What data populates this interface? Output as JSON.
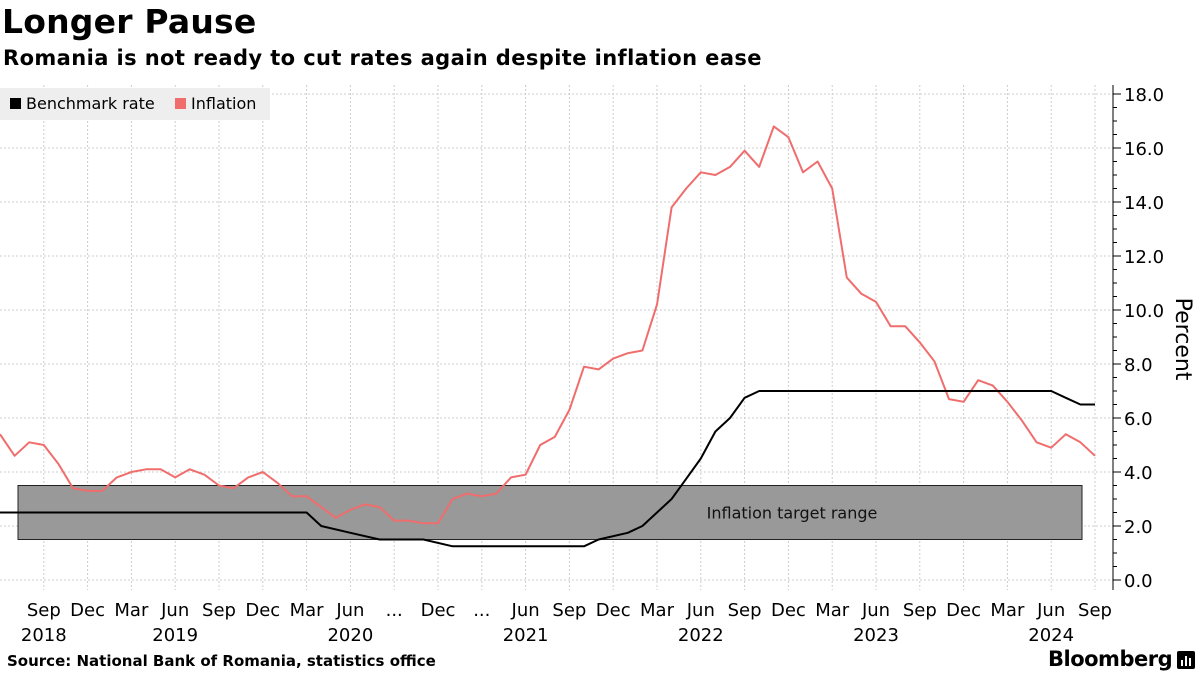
{
  "title": "Longer Pause",
  "subtitle": "Romania is not ready to cut rates again despite inflation ease",
  "footer": {
    "source": "Source: National Bank of Romania, statistics office",
    "brand": "Bloomberg"
  },
  "colors": {
    "benchmark": "#000000",
    "inflation": "#f06d6d",
    "band": "#999999",
    "grid": "#cccccc"
  },
  "chart_data": {
    "type": "line",
    "title": "Longer Pause",
    "subtitle": "Romania is not ready to cut rates again despite inflation ease",
    "ylabel": "Percent",
    "ylim": [
      0,
      18.5
    ],
    "y_ticks": [
      "0.0",
      "2.0",
      "4.0",
      "6.0",
      "8.0",
      "10.0",
      "12.0",
      "14.0",
      "16.0",
      "18.0"
    ],
    "y_axis_side": "right",
    "grid": true,
    "legend_position": "top-left",
    "x_range": [
      "2018-06",
      "2024-09"
    ],
    "x_tick_labels": [
      {
        "date": "2018-09",
        "label": "Sep"
      },
      {
        "date": "2018-12",
        "label": "Dec"
      },
      {
        "date": "2019-03",
        "label": "Mar"
      },
      {
        "date": "2019-06",
        "label": "Jun"
      },
      {
        "date": "2019-09",
        "label": "Sep"
      },
      {
        "date": "2019-12",
        "label": "Dec"
      },
      {
        "date": "2020-03",
        "label": "Mar"
      },
      {
        "date": "2020-06",
        "label": "Jun"
      },
      {
        "date": "2020-09",
        "label": "..."
      },
      {
        "date": "2020-12",
        "label": "Dec"
      },
      {
        "date": "2021-03",
        "label": "..."
      },
      {
        "date": "2021-06",
        "label": "Jun"
      },
      {
        "date": "2021-09",
        "label": "Sep"
      },
      {
        "date": "2021-12",
        "label": "Dec"
      },
      {
        "date": "2022-03",
        "label": "Mar"
      },
      {
        "date": "2022-06",
        "label": "Jun"
      },
      {
        "date": "2022-09",
        "label": "Sep"
      },
      {
        "date": "2022-12",
        "label": "Dec"
      },
      {
        "date": "2023-03",
        "label": "Mar"
      },
      {
        "date": "2023-06",
        "label": "Jun"
      },
      {
        "date": "2023-09",
        "label": "Sep"
      },
      {
        "date": "2023-12",
        "label": "Dec"
      },
      {
        "date": "2024-03",
        "label": "Mar"
      },
      {
        "date": "2024-06",
        "label": "Jun"
      },
      {
        "date": "2024-09",
        "label": "Sep"
      }
    ],
    "year_labels": [
      {
        "date": "2018-09",
        "label": "2018"
      },
      {
        "date": "2019-06",
        "label": "2019"
      },
      {
        "date": "2020-06",
        "label": "2020"
      },
      {
        "date": "2021-06",
        "label": "2021"
      },
      {
        "date": "2022-06",
        "label": "2022"
      },
      {
        "date": "2023-06",
        "label": "2023"
      },
      {
        "date": "2024-06",
        "label": "2024"
      }
    ],
    "shaded_range": {
      "label": "Inflation target range",
      "y_from": 1.5,
      "y_to": 3.5
    },
    "series": [
      {
        "name": "Benchmark rate",
        "color": "#000000",
        "points": [
          [
            "2018-06",
            2.5
          ],
          [
            "2020-03",
            2.5
          ],
          [
            "2020-04",
            2.0
          ],
          [
            "2020-06",
            1.75
          ],
          [
            "2020-08",
            1.5
          ],
          [
            "2020-11",
            1.5
          ],
          [
            "2021-01",
            1.25
          ],
          [
            "2021-10",
            1.25
          ],
          [
            "2021-11",
            1.5
          ],
          [
            "2022-01",
            1.75
          ],
          [
            "2022-02",
            2.0
          ],
          [
            "2022-03",
            2.5
          ],
          [
            "2022-04",
            3.0
          ],
          [
            "2022-05",
            3.75
          ],
          [
            "2022-06",
            4.5
          ],
          [
            "2022-07",
            5.5
          ],
          [
            "2022-08",
            6.0
          ],
          [
            "2022-09",
            6.75
          ],
          [
            "2022-10",
            7.0
          ],
          [
            "2024-06",
            7.0
          ],
          [
            "2024-07",
            6.75
          ],
          [
            "2024-08",
            6.5
          ],
          [
            "2024-09",
            6.5
          ]
        ]
      },
      {
        "name": "Inflation",
        "color": "#f06d6d",
        "points": [
          [
            "2018-06",
            5.4
          ],
          [
            "2018-07",
            4.6
          ],
          [
            "2018-08",
            5.1
          ],
          [
            "2018-09",
            5.0
          ],
          [
            "2018-10",
            4.3
          ],
          [
            "2018-11",
            3.4
          ],
          [
            "2018-12",
            3.3
          ],
          [
            "2019-01",
            3.3
          ],
          [
            "2019-02",
            3.8
          ],
          [
            "2019-03",
            4.0
          ],
          [
            "2019-04",
            4.1
          ],
          [
            "2019-05",
            4.1
          ],
          [
            "2019-06",
            3.8
          ],
          [
            "2019-07",
            4.1
          ],
          [
            "2019-08",
            3.9
          ],
          [
            "2019-09",
            3.5
          ],
          [
            "2019-10",
            3.4
          ],
          [
            "2019-11",
            3.8
          ],
          [
            "2019-12",
            4.0
          ],
          [
            "2020-01",
            3.6
          ],
          [
            "2020-02",
            3.1
          ],
          [
            "2020-03",
            3.1
          ],
          [
            "2020-04",
            2.7
          ],
          [
            "2020-05",
            2.3
          ],
          [
            "2020-06",
            2.6
          ],
          [
            "2020-07",
            2.8
          ],
          [
            "2020-08",
            2.7
          ],
          [
            "2020-09",
            2.2
          ],
          [
            "2020-10",
            2.2
          ],
          [
            "2020-11",
            2.1
          ],
          [
            "2020-12",
            2.1
          ],
          [
            "2021-01",
            3.0
          ],
          [
            "2021-02",
            3.2
          ],
          [
            "2021-03",
            3.1
          ],
          [
            "2021-04",
            3.2
          ],
          [
            "2021-05",
            3.8
          ],
          [
            "2021-06",
            3.9
          ],
          [
            "2021-07",
            5.0
          ],
          [
            "2021-08",
            5.3
          ],
          [
            "2021-09",
            6.3
          ],
          [
            "2021-10",
            7.9
          ],
          [
            "2021-11",
            7.8
          ],
          [
            "2021-12",
            8.2
          ],
          [
            "2022-01",
            8.4
          ],
          [
            "2022-02",
            8.5
          ],
          [
            "2022-03",
            10.2
          ],
          [
            "2022-04",
            13.8
          ],
          [
            "2022-05",
            14.5
          ],
          [
            "2022-06",
            15.1
          ],
          [
            "2022-07",
            15.0
          ],
          [
            "2022-08",
            15.3
          ],
          [
            "2022-09",
            15.9
          ],
          [
            "2022-10",
            15.3
          ],
          [
            "2022-11",
            16.8
          ],
          [
            "2022-12",
            16.4
          ],
          [
            "2023-01",
            15.1
          ],
          [
            "2023-02",
            15.5
          ],
          [
            "2023-03",
            14.5
          ],
          [
            "2023-04",
            11.2
          ],
          [
            "2023-05",
            10.6
          ],
          [
            "2023-06",
            10.3
          ],
          [
            "2023-07",
            9.4
          ],
          [
            "2023-08",
            9.4
          ],
          [
            "2023-09",
            8.8
          ],
          [
            "2023-10",
            8.1
          ],
          [
            "2023-11",
            6.7
          ],
          [
            "2023-12",
            6.6
          ],
          [
            "2024-01",
            7.4
          ],
          [
            "2024-02",
            7.2
          ],
          [
            "2024-03",
            6.6
          ],
          [
            "2024-04",
            5.9
          ],
          [
            "2024-05",
            5.1
          ],
          [
            "2024-06",
            4.9
          ],
          [
            "2024-07",
            5.4
          ],
          [
            "2024-08",
            5.1
          ],
          [
            "2024-09",
            4.6
          ]
        ]
      }
    ]
  }
}
